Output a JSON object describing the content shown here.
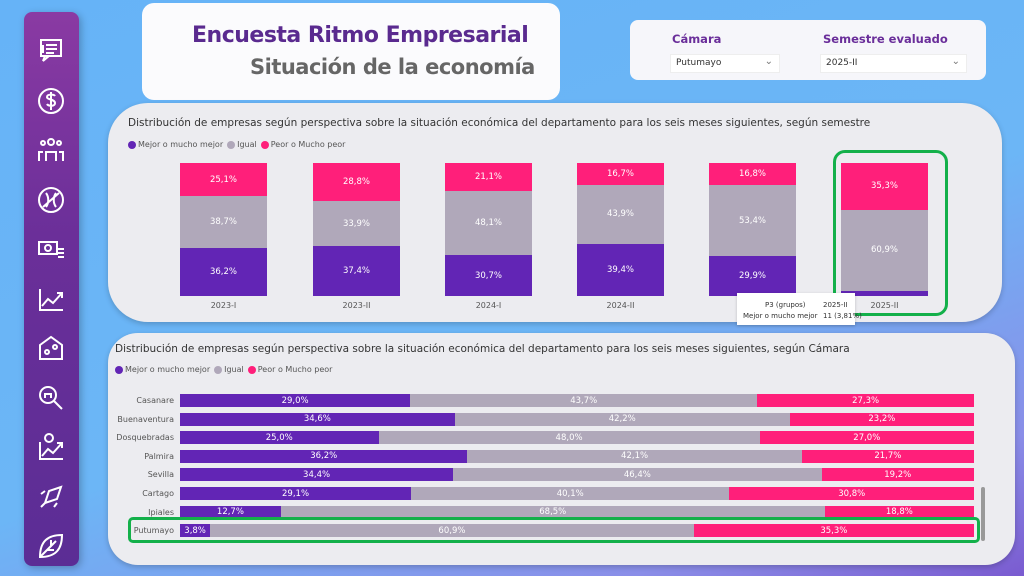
{
  "header": {
    "title": "Encuesta Ritmo Empresarial",
    "subtitle": "Situación de la economía"
  },
  "filters": {
    "camara": {
      "label": "Cámara",
      "value": "Putumayo"
    },
    "semestre": {
      "label": "Semestre evaluado",
      "value": "2025-II"
    }
  },
  "sidebar": {
    "icons": [
      "survey-icon",
      "dollar-icon",
      "team-icon",
      "globe-icon",
      "money-icon",
      "trend-icon",
      "factory-icon",
      "search-icon",
      "investment-icon",
      "rocket-icon",
      "leaf-icon"
    ]
  },
  "colors": {
    "mejor": "#6225b5",
    "igual": "#b0a8ba",
    "peor": "#ff1f7a",
    "highlight": "#13b04a"
  },
  "chart_data": [
    {
      "type": "bar",
      "stacked": true,
      "orientation": "vertical",
      "title": "Distribución de empresas según perspectiva sobre la situación económica del departamento para los seis meses siguientes, según semestre",
      "legend": [
        "Mejor o mucho mejor",
        "Igual",
        "Peor o Mucho peor"
      ],
      "categories": [
        "2023-I",
        "2023-II",
        "2024-I",
        "2024-II",
        "",
        "2025-II"
      ],
      "series": [
        {
          "name": "Mejor o mucho mejor",
          "values": [
            36.2,
            37.4,
            30.7,
            39.4,
            29.9,
            3.8
          ],
          "labels": [
            "36,2%",
            "37,4%",
            "30,7%",
            "39,4%",
            "29,9%",
            ""
          ]
        },
        {
          "name": "Igual",
          "values": [
            38.7,
            33.9,
            48.1,
            43.9,
            53.4,
            60.9
          ],
          "labels": [
            "38,7%",
            "33,9%",
            "48,1%",
            "43,9%",
            "53,4%",
            "60,9%"
          ]
        },
        {
          "name": "Peor o Mucho peor",
          "values": [
            25.1,
            28.8,
            21.1,
            16.7,
            16.8,
            35.3
          ],
          "labels": [
            "25,1%",
            "28,8%",
            "21,1%",
            "16,7%",
            "16,8%",
            "35,3%"
          ]
        }
      ],
      "highlight": "2025-II",
      "tooltip": {
        "k1": "P3 (grupos)",
        "v1": "2025-II",
        "k2": "Mejor o mucho mejor",
        "v2": "11 (3,81%)"
      }
    },
    {
      "type": "bar",
      "stacked": true,
      "orientation": "horizontal",
      "title": "Distribución de empresas según perspectiva sobre la situación económica del departamento para los seis meses siguientes, según Cámara",
      "legend": [
        "Mejor o mucho mejor",
        "Igual",
        "Peor o Mucho peor"
      ],
      "categories": [
        "Casanare",
        "Buenaventura",
        "Dosquebradas",
        "Palmira",
        "Sevilla",
        "Cartago",
        "Ipiales",
        "Putumayo"
      ],
      "series": [
        {
          "name": "Mejor o mucho mejor",
          "values": [
            29.0,
            34.6,
            25.0,
            36.2,
            34.4,
            29.1,
            12.7,
            3.8
          ],
          "labels": [
            "29,0%",
            "34,6%",
            "25,0%",
            "36,2%",
            "34,4%",
            "29,1%",
            "12,7%",
            "3,8%"
          ]
        },
        {
          "name": "Igual",
          "values": [
            43.7,
            42.2,
            48.0,
            42.1,
            46.4,
            40.1,
            68.5,
            60.9
          ],
          "labels": [
            "43,7%",
            "42,2%",
            "48,0%",
            "42,1%",
            "46,4%",
            "40,1%",
            "68,5%",
            "60,9%"
          ]
        },
        {
          "name": "Peor o Mucho peor",
          "values": [
            27.3,
            23.2,
            27.0,
            21.7,
            19.2,
            30.8,
            18.8,
            35.3
          ],
          "labels": [
            "27,3%",
            "23,2%",
            "27,0%",
            "21,7%",
            "19,2%",
            "30,8%",
            "18,8%",
            "35,3%"
          ]
        }
      ],
      "highlight": "Putumayo"
    }
  ]
}
